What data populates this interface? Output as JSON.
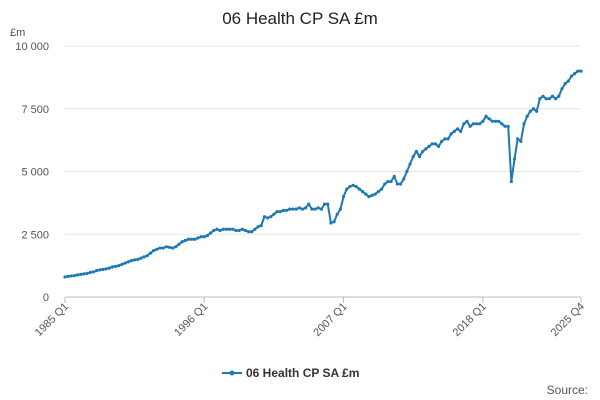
{
  "chart_data": {
    "type": "line",
    "title": "06 Health CP SA £m",
    "y_label": "£m",
    "source": "Source:",
    "categories": [
      "1985 Q1",
      null,
      null,
      null,
      null,
      null,
      null,
      null,
      null,
      null,
      null,
      null,
      null,
      null,
      null,
      null,
      null,
      null,
      null,
      null,
      null,
      null,
      null,
      null,
      null,
      null,
      null,
      null,
      null,
      null,
      null,
      null,
      null,
      null,
      null,
      null,
      null,
      null,
      null,
      null,
      null,
      null,
      null,
      null,
      "1996 Q1",
      null,
      null,
      null,
      null,
      null,
      null,
      null,
      null,
      null,
      null,
      null,
      null,
      null,
      null,
      null,
      null,
      null,
      null,
      null,
      null,
      null,
      null,
      null,
      null,
      null,
      null,
      null,
      null,
      null,
      null,
      null,
      null,
      null,
      null,
      null,
      null,
      null,
      null,
      null,
      null,
      null,
      null,
      null,
      "2007 Q1",
      null,
      null,
      null,
      null,
      null,
      null,
      null,
      null,
      null,
      null,
      null,
      null,
      null,
      null,
      null,
      null,
      null,
      null,
      null,
      null,
      null,
      null,
      null,
      null,
      null,
      null,
      null,
      null,
      null,
      null,
      null,
      null,
      null,
      null,
      null,
      null,
      null,
      null,
      null,
      null,
      null,
      null,
      null,
      "2018 Q1",
      null,
      null,
      null,
      null,
      null,
      null,
      null,
      null,
      null,
      null,
      null,
      null,
      null,
      null,
      null,
      null,
      null,
      null,
      null,
      null,
      null,
      null,
      null,
      null,
      null,
      null,
      null,
      null,
      null,
      null,
      "2025 Q4"
    ],
    "series": [
      {
        "name": "06 Health CP SA £m",
        "color": "#1f78b4",
        "values": [
          800,
          820,
          840,
          850,
          880,
          900,
          920,
          940,
          980,
          1000,
          1050,
          1080,
          1100,
          1120,
          1150,
          1200,
          1220,
          1250,
          1300,
          1350,
          1400,
          1450,
          1480,
          1500,
          1550,
          1600,
          1650,
          1750,
          1850,
          1900,
          1950,
          1950,
          2000,
          1980,
          1950,
          2000,
          2100,
          2200,
          2250,
          2300,
          2300,
          2300,
          2350,
          2400,
          2400,
          2450,
          2550,
          2650,
          2700,
          2650,
          2700,
          2700,
          2700,
          2700,
          2650,
          2650,
          2700,
          2650,
          2600,
          2600,
          2700,
          2800,
          2850,
          3200,
          3150,
          3200,
          3300,
          3400,
          3400,
          3450,
          3450,
          3500,
          3500,
          3500,
          3550,
          3500,
          3550,
          3700,
          3500,
          3500,
          3550,
          3500,
          3700,
          3700,
          2950,
          3000,
          3300,
          3500,
          4000,
          4300,
          4400,
          4450,
          4400,
          4300,
          4200,
          4100,
          4000,
          4050,
          4100,
          4200,
          4300,
          4500,
          4600,
          4600,
          4800,
          4500,
          4500,
          4700,
          5000,
          5300,
          5600,
          5800,
          5600,
          5800,
          5900,
          6000,
          6100,
          6100,
          6000,
          6200,
          6300,
          6300,
          6500,
          6600,
          6700,
          6600,
          6900,
          7000,
          6800,
          6900,
          6900,
          6900,
          7000,
          7200,
          7100,
          7000,
          7000,
          7000,
          6900,
          6800,
          6800,
          4600,
          5500,
          6300,
          6200,
          6900,
          7200,
          7400,
          7500,
          7400,
          7900,
          8000,
          7900,
          7900,
          8000,
          7900,
          8000,
          8300,
          8500,
          8600,
          8800,
          8900,
          9000,
          9000
        ]
      }
    ],
    "ylim": [
      0,
      10000
    ],
    "yticks": [
      0,
      {
        "value": 2500,
        "label": "2 500"
      },
      {
        "value": 5000,
        "label": "5 000"
      },
      {
        "value": 7500,
        "label": "7 500"
      },
      {
        "value": 10000,
        "label": "10 000"
      }
    ],
    "grid": true
  }
}
